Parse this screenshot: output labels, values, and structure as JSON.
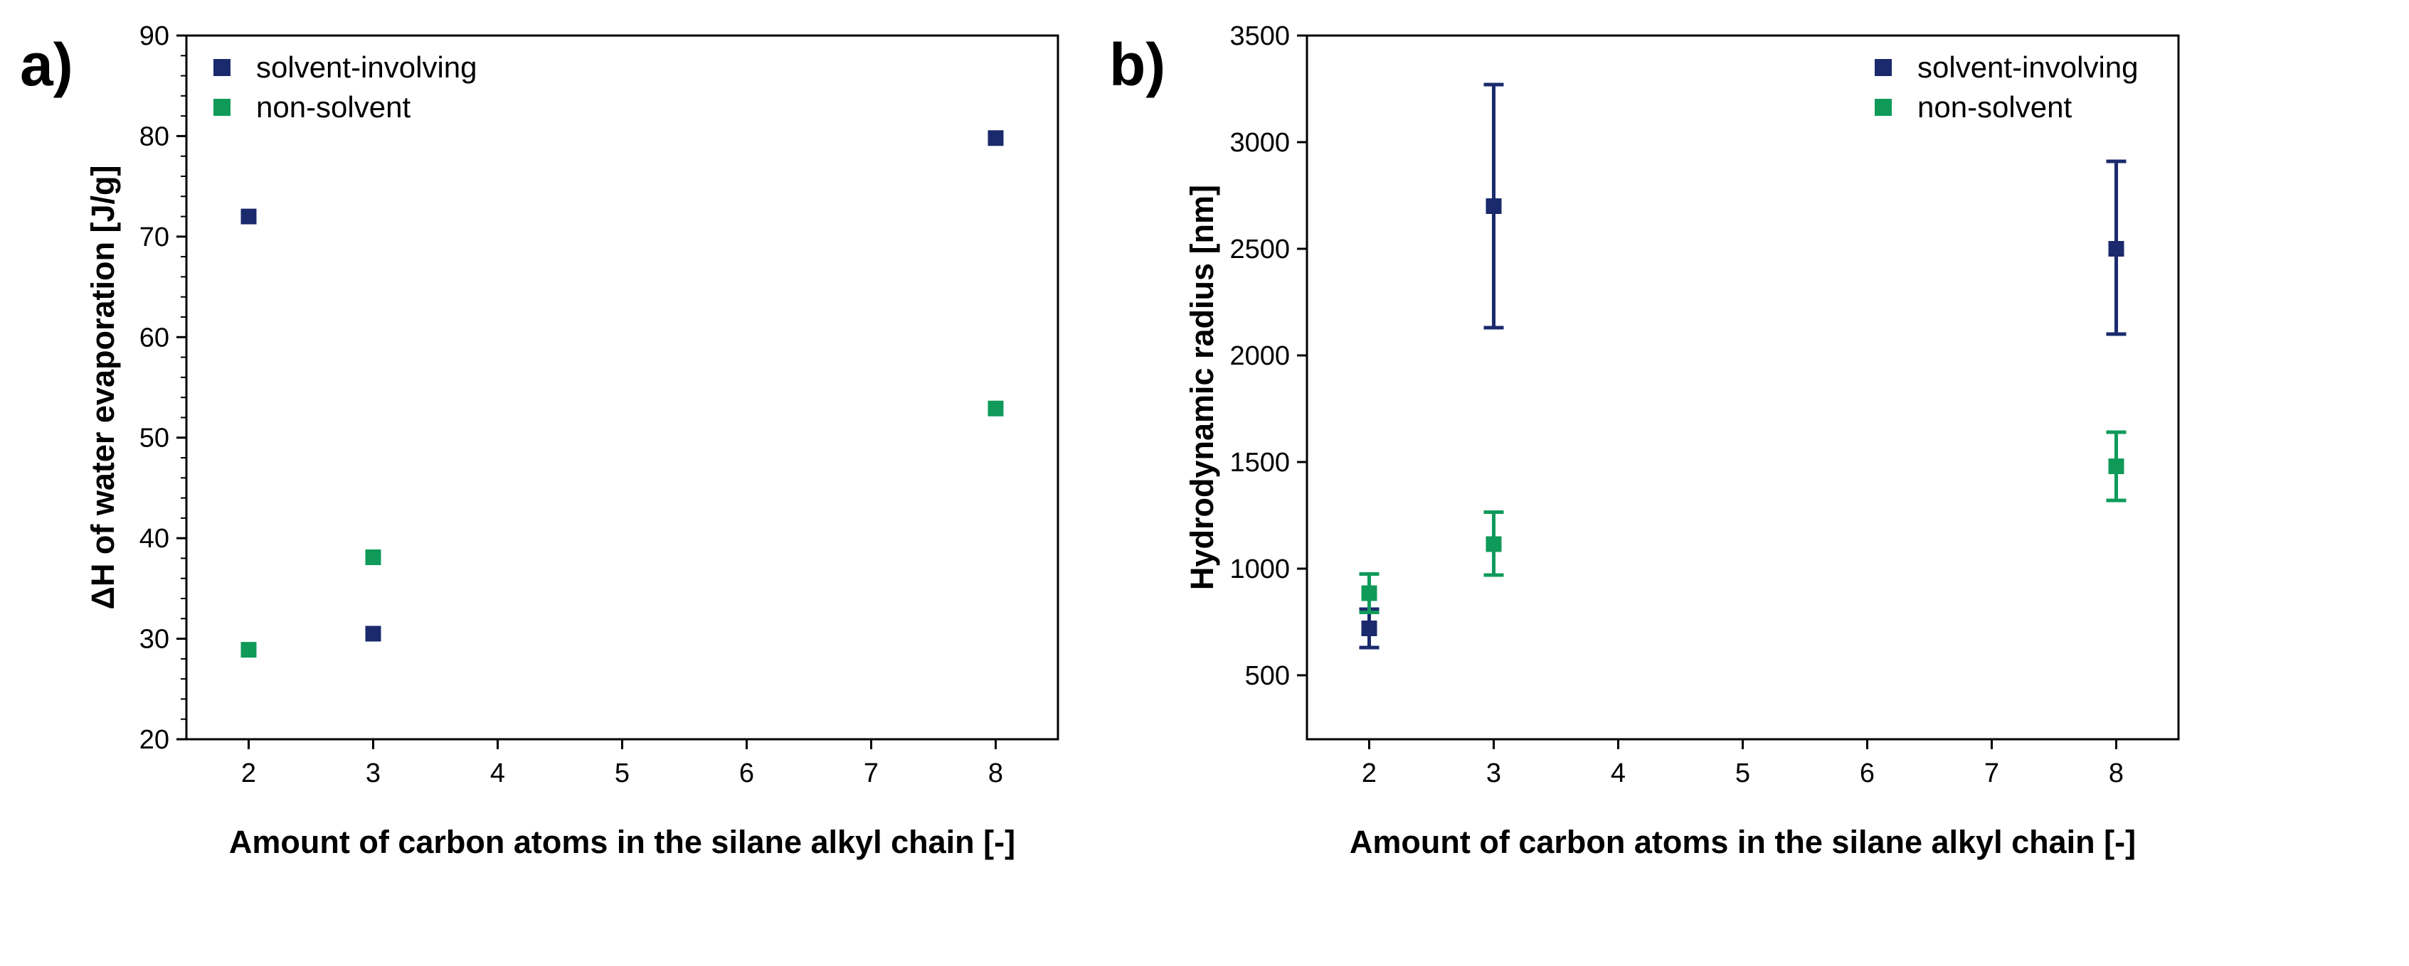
{
  "chart_data": [
    {
      "panel_label": "a)",
      "type": "scatter",
      "title": "",
      "xlabel": "Amount of carbon atoms in the silane alkyl chain [-]",
      "ylabel": "ΔH of water evaporation [J/g]",
      "xlim": [
        1.5,
        8.5
      ],
      "ylim": [
        20,
        90
      ],
      "xticks": [
        2,
        3,
        4,
        5,
        6,
        7,
        8
      ],
      "yticks": [
        20,
        30,
        40,
        50,
        60,
        70,
        80,
        90
      ],
      "legend_position": "top-left",
      "series": [
        {
          "name": "solvent-involving",
          "color": "#1a2a6c",
          "points": [
            {
              "x": 2,
              "y": 72.0
            },
            {
              "x": 3,
              "y": 30.5
            },
            {
              "x": 8,
              "y": 79.8
            }
          ]
        },
        {
          "name": "non-solvent",
          "color": "#0f9a5a",
          "points": [
            {
              "x": 2,
              "y": 28.9
            },
            {
              "x": 3,
              "y": 38.1
            },
            {
              "x": 8,
              "y": 52.9
            }
          ]
        }
      ]
    },
    {
      "panel_label": "b)",
      "type": "scatter",
      "title": "",
      "xlabel": "Amount of carbon atoms in the silane alkyl chain [-]",
      "ylabel": "Hydrodynamic radius [nm]",
      "xlim": [
        1.5,
        8.5
      ],
      "ylim": [
        200,
        3500
      ],
      "xticks": [
        2,
        3,
        4,
        5,
        6,
        7,
        8
      ],
      "yticks": [
        500,
        1000,
        1500,
        2000,
        2500,
        3000,
        3500
      ],
      "legend_position": "top-right",
      "series": [
        {
          "name": "solvent-involving",
          "color": "#1a2a6c",
          "points": [
            {
              "x": 2,
              "y": 720,
              "err_low": 630,
              "err_high": 810
            },
            {
              "x": 3,
              "y": 2700,
              "err_low": 2130,
              "err_high": 3270
            },
            {
              "x": 8,
              "y": 2500,
              "err_low": 2100,
              "err_high": 2910
            }
          ]
        },
        {
          "name": "non-solvent",
          "color": "#0f9a5a",
          "points": [
            {
              "x": 2,
              "y": 885,
              "err_low": 795,
              "err_high": 975
            },
            {
              "x": 3,
              "y": 1115,
              "err_low": 970,
              "err_high": 1265
            },
            {
              "x": 8,
              "y": 1480,
              "err_low": 1320,
              "err_high": 1640
            }
          ]
        }
      ]
    }
  ]
}
